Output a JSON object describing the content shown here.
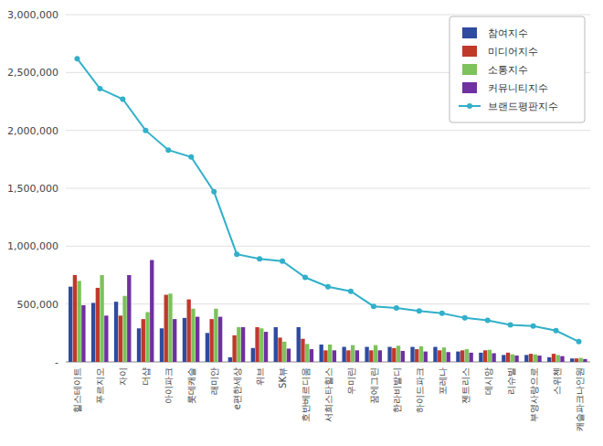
{
  "chart_data": {
    "type": "bar",
    "categories": [
      "힐스테이트",
      "푸르지오",
      "자이",
      "더샵",
      "아이파크",
      "롯데캐슬",
      "래미안",
      "e편한세상",
      "위브",
      "SK뷰",
      "호반베르디움",
      "서희스타힐스",
      "우미린",
      "꿈에그린",
      "한라비발디",
      "하이드파크",
      "포레나",
      "젠트리스",
      "데시앙",
      "리슈빌",
      "부영사랑으로",
      "스위첸",
      "캐슬파크나인원"
    ],
    "series": [
      {
        "name": "참여지수",
        "type": "bar",
        "color": "#2E4BA0",
        "values": [
          650000,
          510000,
          520000,
          290000,
          290000,
          380000,
          250000,
          40000,
          120000,
          300000,
          300000,
          150000,
          130000,
          130000,
          130000,
          130000,
          130000,
          90000,
          80000,
          60000,
          60000,
          40000,
          30000
        ]
      },
      {
        "name": "미디어지수",
        "type": "bar",
        "color": "#C0392B",
        "values": [
          750000,
          640000,
          400000,
          370000,
          580000,
          540000,
          370000,
          230000,
          300000,
          210000,
          200000,
          100000,
          100000,
          100000,
          120000,
          110000,
          100000,
          100000,
          100000,
          80000,
          70000,
          70000,
          30000
        ]
      },
      {
        "name": "소통지수",
        "type": "bar",
        "color": "#7DC25B",
        "values": [
          700000,
          750000,
          570000,
          430000,
          590000,
          460000,
          460000,
          300000,
          290000,
          175000,
          155000,
          150000,
          145000,
          145000,
          140000,
          135000,
          125000,
          110000,
          105000,
          65000,
          65000,
          60000,
          35000
        ]
      },
      {
        "name": "커뮤니티지수",
        "type": "bar",
        "color": "#7030A0",
        "values": [
          490000,
          400000,
          750000,
          880000,
          370000,
          390000,
          390000,
          300000,
          260000,
          115000,
          110000,
          100000,
          100000,
          100000,
          95000,
          90000,
          85000,
          80000,
          75000,
          55000,
          55000,
          50000,
          25000
        ]
      },
      {
        "name": "브랜드평판지수",
        "type": "line",
        "marker": "circle",
        "color": "#31B0C9",
        "values": [
          2620000,
          2360000,
          2270000,
          2000000,
          1830000,
          1770000,
          1470000,
          930000,
          890000,
          870000,
          730000,
          650000,
          610000,
          480000,
          465000,
          440000,
          420000,
          380000,
          360000,
          320000,
          310000,
          270000,
          175000
        ]
      }
    ],
    "ylim": [
      0,
      3000000
    ],
    "yticks": [
      {
        "value": 0,
        "label": "-"
      },
      {
        "value": 500000,
        "label": "500,000"
      },
      {
        "value": 1000000,
        "label": "1,000,000"
      },
      {
        "value": 1500000,
        "label": "1,500,000"
      },
      {
        "value": 2000000,
        "label": "2,000,000"
      },
      {
        "value": 2500000,
        "label": "2,500,000"
      },
      {
        "value": 3000000,
        "label": "3,000,000"
      }
    ],
    "grid": true,
    "legend": "upper right"
  }
}
